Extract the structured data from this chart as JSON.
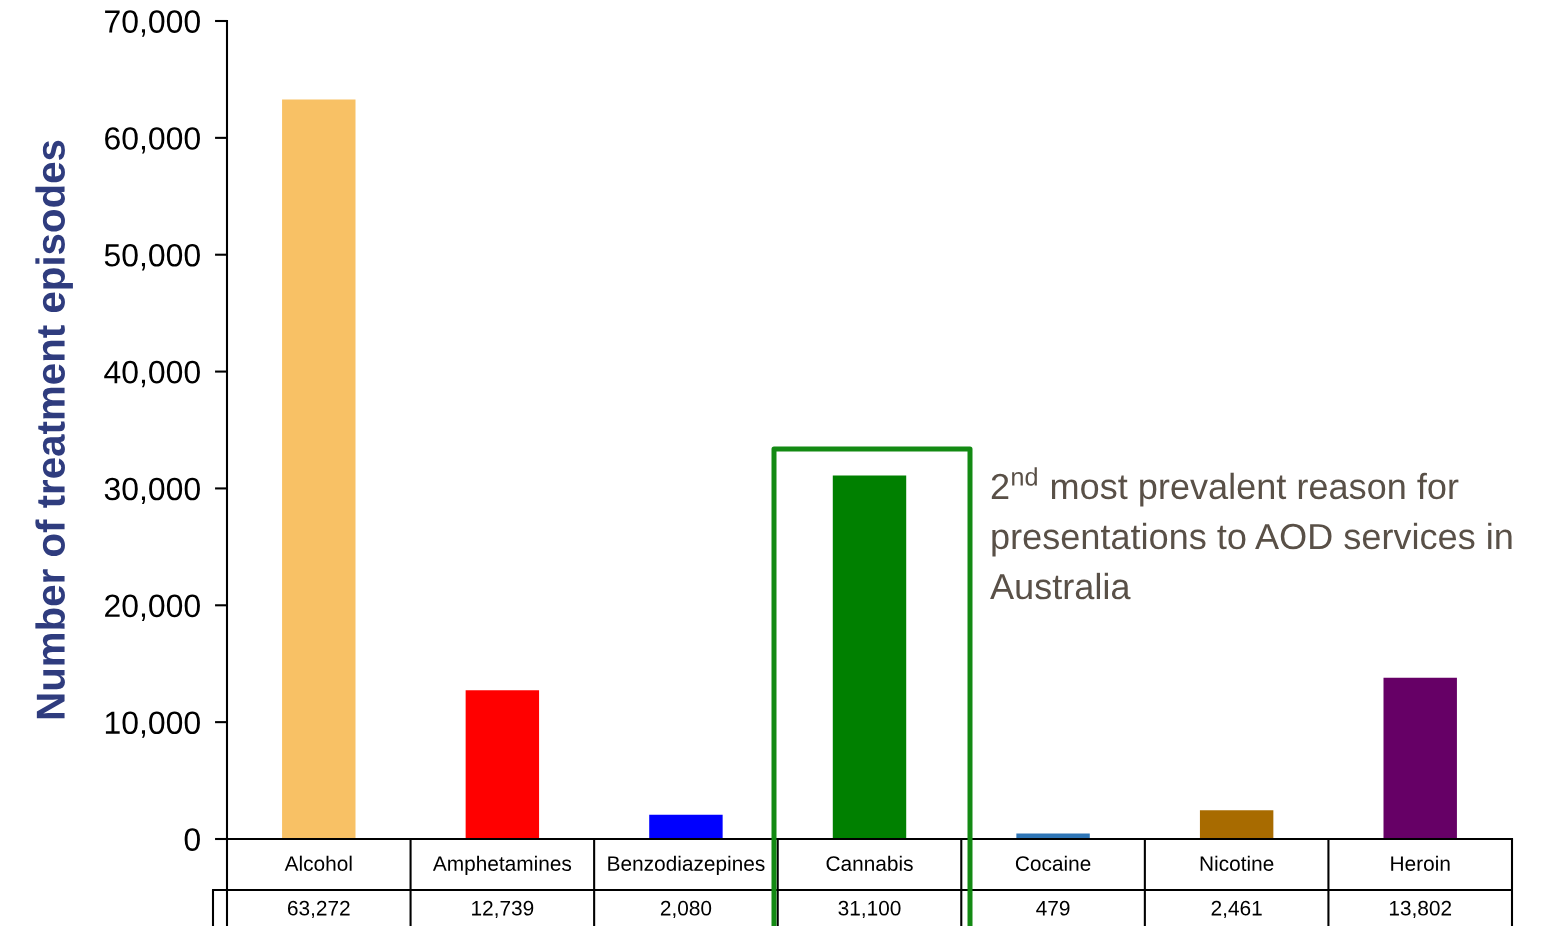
{
  "chart_data": {
    "type": "bar",
    "categories": [
      "Alcohol",
      "Amphetamines",
      "Benzodiazepines",
      "Cannabis",
      "Cocaine",
      "Nicotine",
      "Heroin"
    ],
    "values": [
      63272,
      12739,
      2080,
      31100,
      479,
      2461,
      13802
    ],
    "value_labels": [
      "63,272",
      "12,739",
      "2,080",
      "31,100",
      "479",
      "2,461",
      "13,802"
    ],
    "colors": [
      "#f8c165",
      "#ff0000",
      "#0000ff",
      "#008000",
      "#2e75b6",
      "#a86b00",
      "#660066"
    ],
    "ylabel": "Number of treatment episodes",
    "ylim": [
      0,
      70000
    ],
    "yticks": [
      0,
      {
        "value": 10000,
        "label": "10,000"
      },
      {
        "value": 20000,
        "label": "20,000"
      },
      {
        "value": 30000,
        "label": "30,000"
      },
      {
        "value": 40000,
        "label": "40,000"
      },
      {
        "value": 50000,
        "label": "50,000"
      },
      {
        "value": 60000,
        "label": "60,000"
      },
      {
        "value": 70000,
        "label": "70,000"
      }
    ],
    "grid": false,
    "annotations": [
      "2$^{nd}$ most prevalent reason for",
      "presentations to AOD services in",
      "Australia"
    ]
  }
}
